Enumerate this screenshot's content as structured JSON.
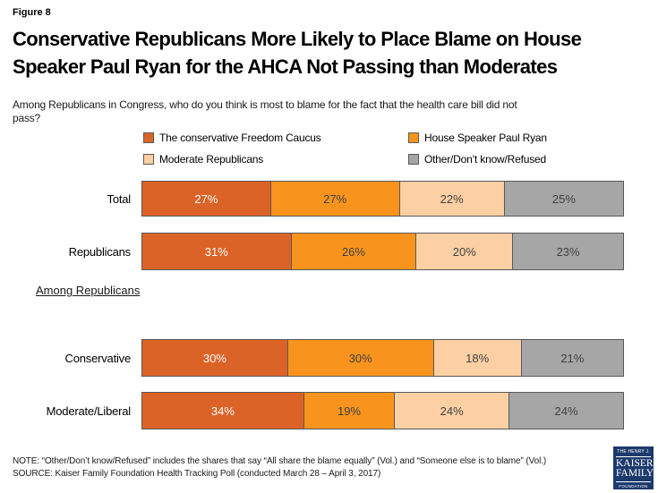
{
  "figure_label": "Figure 8",
  "title_lines": [
    "Conservative Republicans More Likely to Place Blame on House",
    "Speaker Paul Ryan for the AHCA Not Passing than Moderates"
  ],
  "subtitle_lines": [
    "Among Republicans in Congress, who do you think is most to blame for the fact that the health care bill did not",
    "pass?"
  ],
  "section_label": "Among Republicans",
  "footer": {
    "note": "NOTE: “Other/Don’t know/Refused” includes the shares that say “All share the blame equally” (Vol.) and “Someone else is to blame” (Vol.)",
    "source": "SOURCE: Kaiser Family Foundation Health Tracking Poll (conducted March 28 – April 3, 2017)"
  },
  "logo": {
    "top": "THE HENRY J.",
    "name1": "KAISER",
    "name2": "FAMILY",
    "bottom": "FOUNDATION",
    "background": "#1d3a6d"
  },
  "chart_data": {
    "type": "bar",
    "orientation": "horizontal_stacked",
    "value_suffix": "%",
    "legend_position": "top",
    "bar_border_color": "#595959",
    "categories": [
      "Total",
      "Republicans",
      "Conservative",
      "Moderate/Liberal"
    ],
    "series": [
      {
        "name": "The conservative Freedom Caucus",
        "color": "#DC6328",
        "label_color": "#FFFFFF",
        "values": [
          27,
          31,
          30,
          34
        ]
      },
      {
        "name": "House Speaker Paul Ryan",
        "color": "#F8941D",
        "label_color": "#404040",
        "values": [
          27,
          26,
          30,
          19
        ]
      },
      {
        "name": "Moderate Republicans",
        "color": "#FDD0A3",
        "label_color": "#404040",
        "values": [
          22,
          20,
          18,
          24
        ]
      },
      {
        "name": "Other/Don’t know/Refused",
        "color": "#A6A6A6",
        "label_color": "#404040",
        "values": [
          25,
          23,
          21,
          24
        ]
      }
    ]
  }
}
